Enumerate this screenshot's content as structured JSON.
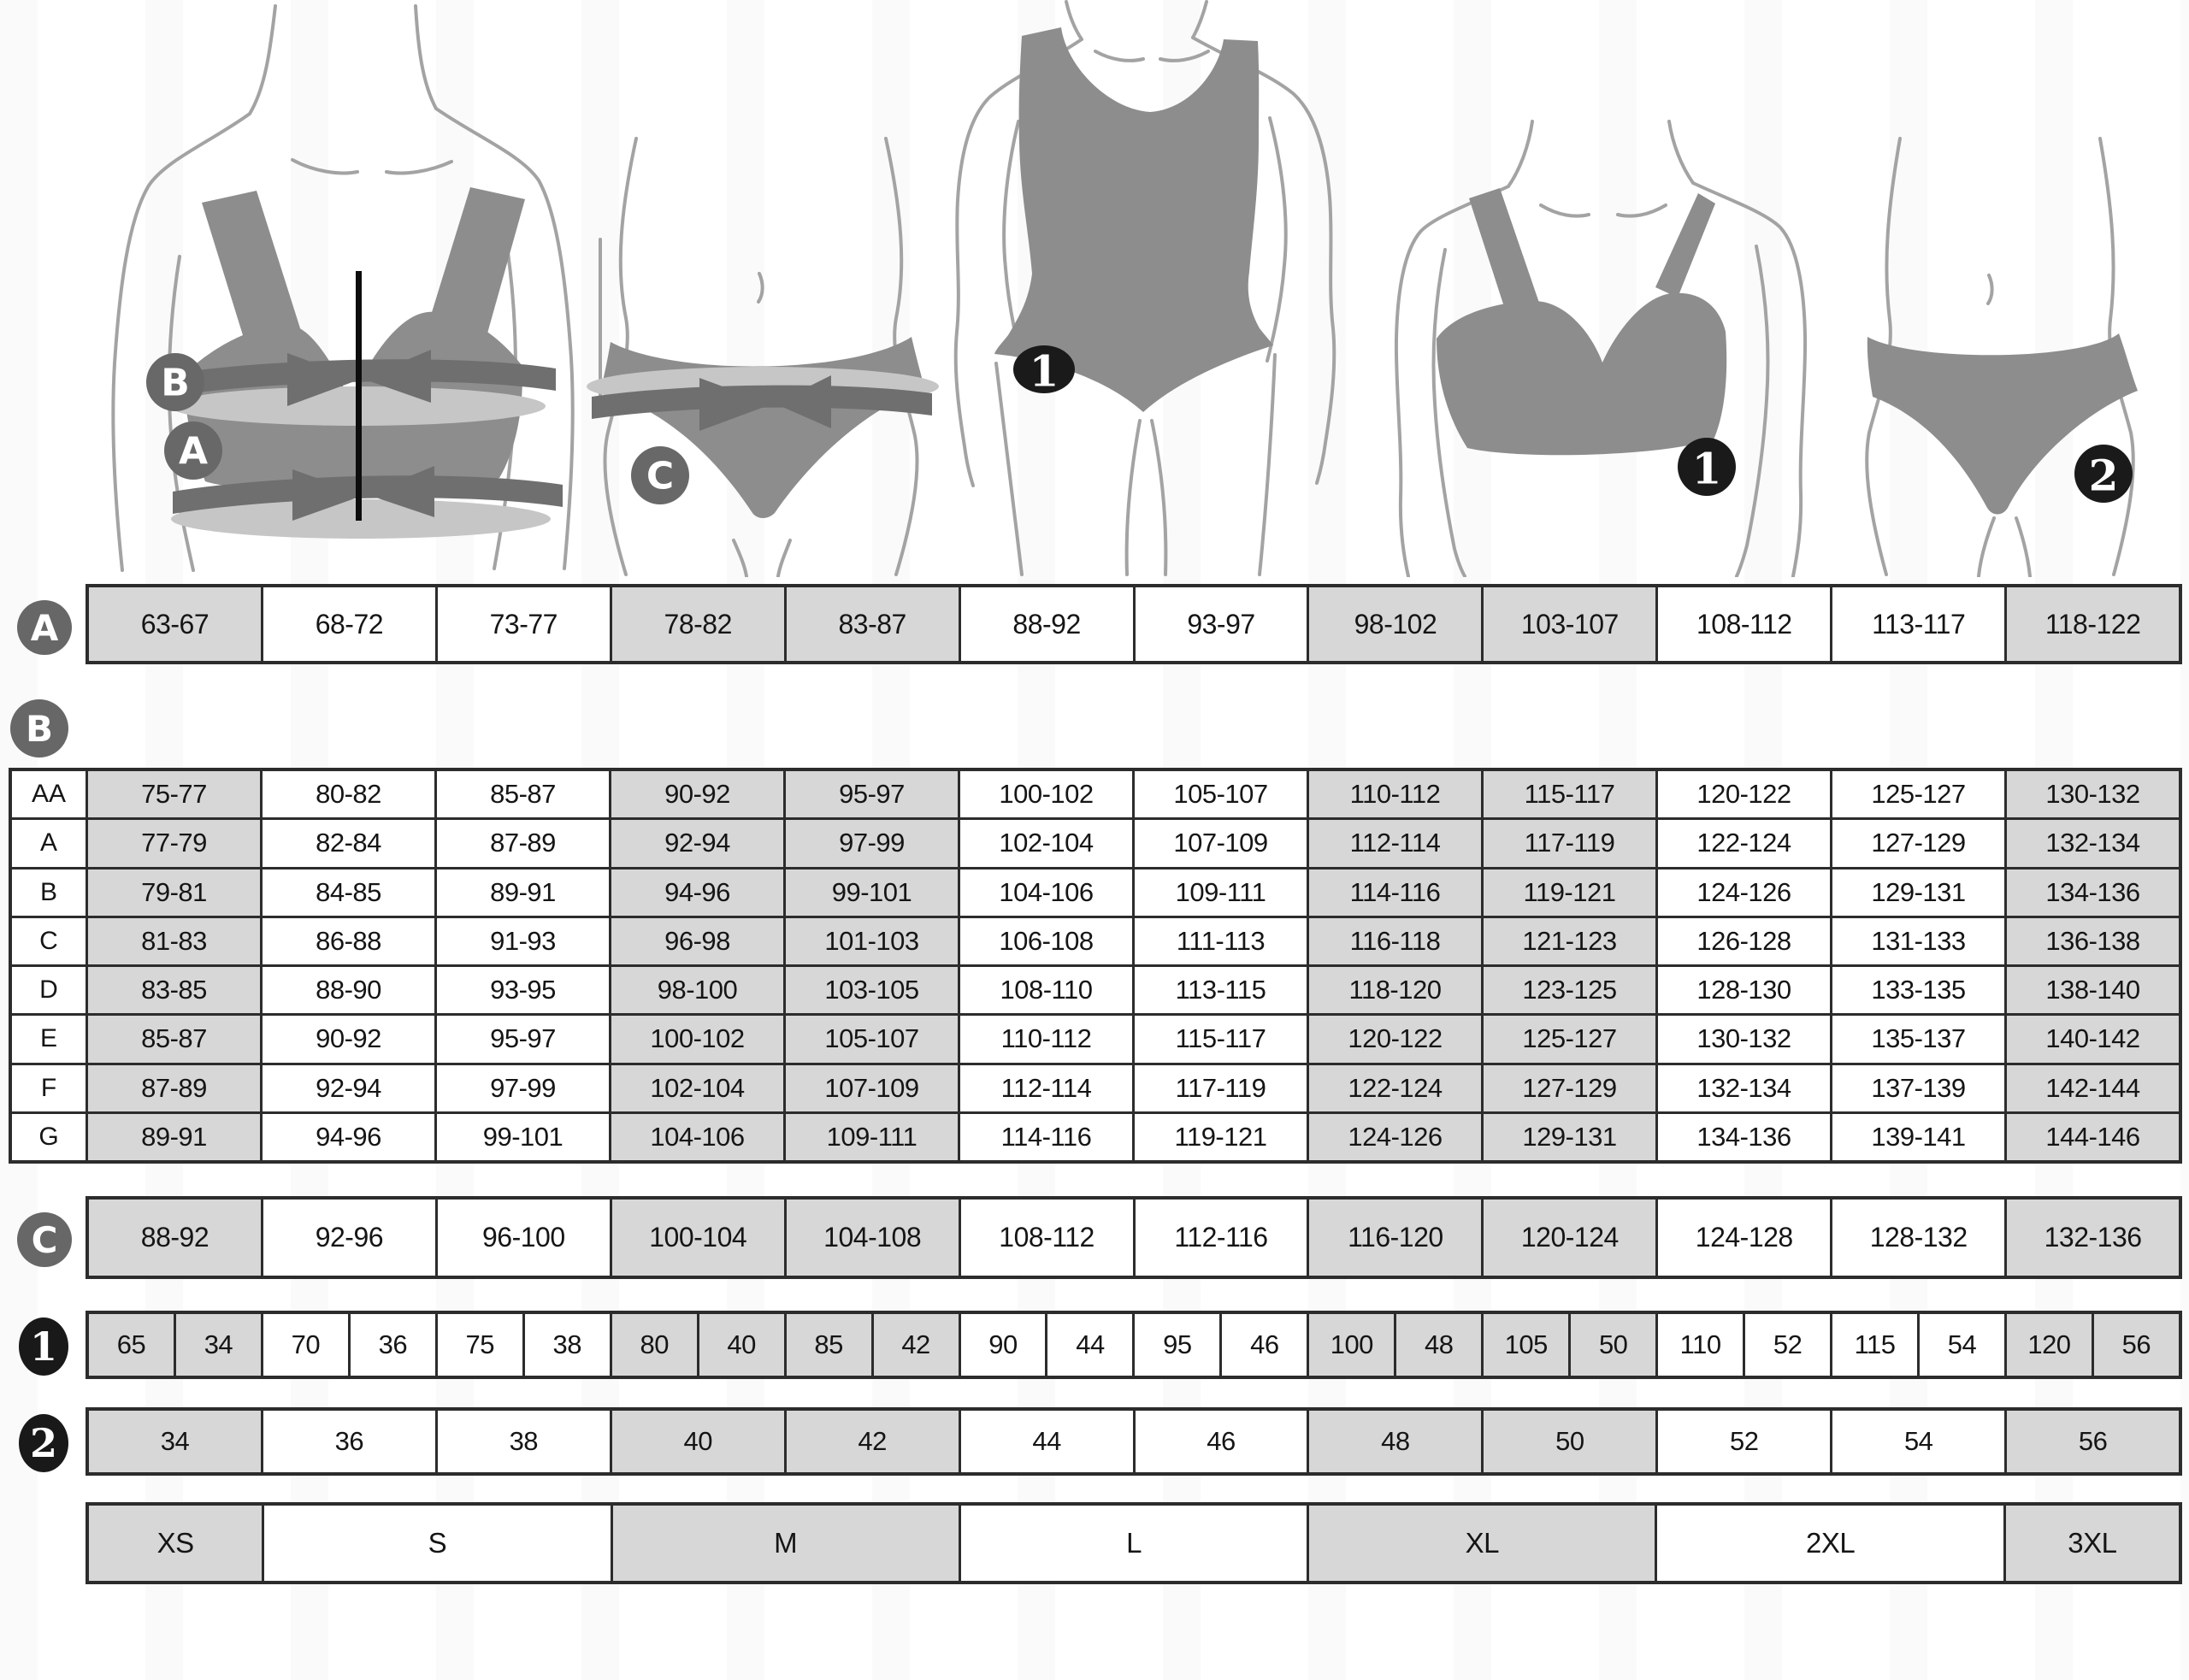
{
  "chart_data": {
    "type": "table",
    "description_visible_text_only": true,
    "tables": [
      {
        "id": "underbust_circumference",
        "label": "A",
        "values": [
          "63-67",
          "68-72",
          "73-77",
          "78-82",
          "83-87",
          "88-92",
          "93-97",
          "98-102",
          "103-107",
          "108-112",
          "113-117",
          "118-122"
        ]
      },
      {
        "id": "bust_circumference_by_cup",
        "label": "B",
        "rows": [
          {
            "cup": "AA",
            "values": [
              "75-77",
              "80-82",
              "85-87",
              "90-92",
              "95-97",
              "100-102",
              "105-107",
              "110-112",
              "115-117",
              "120-122",
              "125-127",
              "130-132"
            ]
          },
          {
            "cup": "A",
            "values": [
              "77-79",
              "82-84",
              "87-89",
              "92-94",
              "97-99",
              "102-104",
              "107-109",
              "112-114",
              "117-119",
              "122-124",
              "127-129",
              "132-134"
            ]
          },
          {
            "cup": "B",
            "values": [
              "79-81",
              "84-85",
              "89-91",
              "94-96",
              "99-101",
              "104-106",
              "109-111",
              "114-116",
              "119-121",
              "124-126",
              "129-131",
              "134-136"
            ]
          },
          {
            "cup": "C",
            "values": [
              "81-83",
              "86-88",
              "91-93",
              "96-98",
              "101-103",
              "106-108",
              "111-113",
              "116-118",
              "121-123",
              "126-128",
              "131-133",
              "136-138"
            ]
          },
          {
            "cup": "D",
            "values": [
              "83-85",
              "88-90",
              "93-95",
              "98-100",
              "103-105",
              "108-110",
              "113-115",
              "118-120",
              "123-125",
              "128-130",
              "133-135",
              "138-140"
            ]
          },
          {
            "cup": "E",
            "values": [
              "85-87",
              "90-92",
              "95-97",
              "100-102",
              "105-107",
              "110-112",
              "115-117",
              "120-122",
              "125-127",
              "130-132",
              "135-137",
              "140-142"
            ]
          },
          {
            "cup": "F",
            "values": [
              "87-89",
              "92-94",
              "97-99",
              "102-104",
              "107-109",
              "112-114",
              "117-119",
              "122-124",
              "127-129",
              "132-134",
              "137-139",
              "142-144"
            ]
          },
          {
            "cup": "G",
            "values": [
              "89-91",
              "94-96",
              "99-101",
              "104-106",
              "109-111",
              "114-116",
              "119-121",
              "124-126",
              "129-131",
              "134-136",
              "139-141",
              "144-146"
            ]
          }
        ]
      },
      {
        "id": "hip_circumference",
        "label": "C",
        "values": [
          "88-92",
          "92-96",
          "96-100",
          "100-104",
          "104-108",
          "108-112",
          "112-116",
          "116-120",
          "120-124",
          "124-128",
          "128-132",
          "132-136"
        ]
      },
      {
        "id": "bra_band_and_dress_size_pairs",
        "label": "1",
        "values": [
          "65",
          "34",
          "70",
          "36",
          "75",
          "38",
          "80",
          "40",
          "85",
          "42",
          "90",
          "44",
          "95",
          "46",
          "100",
          "48",
          "105",
          "50",
          "110",
          "52",
          "115",
          "54",
          "120",
          "56"
        ]
      },
      {
        "id": "dress_size",
        "label": "2",
        "values": [
          "34",
          "36",
          "38",
          "40",
          "42",
          "44",
          "46",
          "48",
          "50",
          "52",
          "54",
          "56"
        ]
      },
      {
        "id": "international_size",
        "label": "",
        "values": [
          "XS",
          "S",
          "M",
          "L",
          "XL",
          "2XL",
          "3XL"
        ]
      }
    ]
  },
  "colors": {
    "cell_gray": "#d7d7d7",
    "table_border": "#2c2c2c",
    "garment_gray": "#8d8d8d",
    "measure_band_gray": "#6f6f6f",
    "tape_highlight_gray": "#c6c6c6",
    "label_circle_gray": "#686868",
    "badge_black": "#1a1a1a"
  }
}
